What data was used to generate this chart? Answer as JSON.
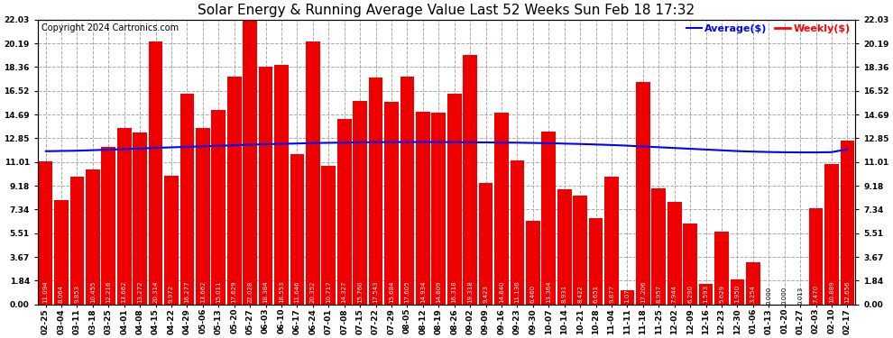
{
  "title": "Solar Energy & Running Average Value Last 52 Weeks Sun Feb 18 17:32",
  "copyright": "Copyright 2024 Cartronics.com",
  "legend_avg": "Average($)",
  "legend_weekly": "Weekly($)",
  "categories": [
    "02-25",
    "03-04",
    "03-11",
    "03-18",
    "03-25",
    "04-01",
    "04-08",
    "04-15",
    "04-22",
    "04-29",
    "05-06",
    "05-13",
    "05-20",
    "05-27",
    "06-03",
    "06-10",
    "06-17",
    "06-24",
    "07-01",
    "07-08",
    "07-15",
    "07-22",
    "07-29",
    "08-05",
    "08-12",
    "08-19",
    "08-26",
    "09-02",
    "09-09",
    "09-16",
    "09-23",
    "09-30",
    "10-07",
    "10-14",
    "10-21",
    "10-28",
    "11-04",
    "11-11",
    "11-18",
    "11-25",
    "12-02",
    "12-09",
    "12-16",
    "12-23",
    "12-30",
    "01-06",
    "01-13",
    "01-20",
    "01-27",
    "02-03",
    "02-10",
    "02-17"
  ],
  "weekly_values": [
    11.094,
    8.064,
    9.853,
    10.455,
    12.216,
    13.662,
    13.272,
    20.314,
    9.972,
    16.277,
    13.662,
    15.011,
    17.629,
    22.028,
    18.384,
    18.553,
    11.646,
    20.352,
    10.717,
    14.327,
    15.76,
    17.543,
    15.684,
    17.605,
    14.934,
    14.809,
    16.318,
    19.318,
    9.423,
    14.84,
    11.136,
    6.46,
    13.364,
    8.931,
    8.422,
    6.651,
    9.877,
    1.077,
    17.206,
    8.957,
    7.944,
    6.29,
    1.593,
    5.629,
    1.95,
    3.254,
    0.0,
    0.0,
    0.013,
    7.47,
    10.889,
    12.656
  ],
  "avg_values": [
    11.85,
    11.87,
    11.89,
    11.93,
    11.97,
    12.01,
    12.06,
    12.11,
    12.15,
    12.19,
    12.23,
    12.27,
    12.31,
    12.36,
    12.39,
    12.42,
    12.45,
    12.48,
    12.5,
    12.52,
    12.54,
    12.55,
    12.56,
    12.56,
    12.56,
    12.56,
    12.55,
    12.54,
    12.53,
    12.52,
    12.51,
    12.49,
    12.47,
    12.44,
    12.41,
    12.37,
    12.33,
    12.28,
    12.22,
    12.16,
    12.1,
    12.04,
    11.98,
    11.92,
    11.86,
    11.82,
    11.79,
    11.77,
    11.76,
    11.76,
    11.78,
    12.0
  ],
  "bar_color": "#ee0000",
  "avg_line_color": "#0000ff",
  "weekly_legend_color": "#ff0000",
  "background_color": "#ffffff",
  "grid_color": "#aaaaaa",
  "yticks": [
    0.0,
    1.84,
    3.67,
    5.51,
    7.34,
    9.18,
    11.01,
    12.85,
    14.69,
    16.52,
    18.36,
    20.19,
    22.03
  ],
  "ymax": 22.03,
  "ymin": 0.0,
  "title_fontsize": 11,
  "copyright_fontsize": 7,
  "tick_fontsize": 6.5,
  "bar_label_fontsize": 5.0
}
